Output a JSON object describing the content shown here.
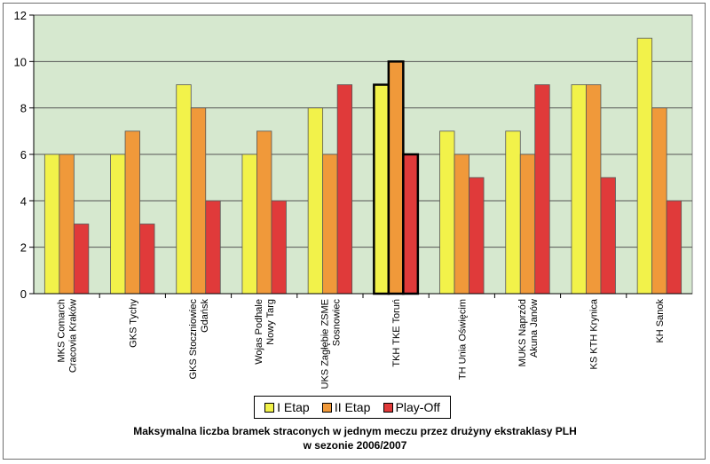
{
  "chart_data": {
    "type": "bar",
    "title_line1": "Maksymalna liczba bramek straconych w jednym meczu przez drużyny ekstraklasy PLH",
    "title_line2": "w sezonie 2006/2007",
    "xlabel": "",
    "ylabel": "",
    "ylim": [
      0,
      12
    ],
    "yticks": [
      0,
      2,
      4,
      6,
      8,
      10,
      12
    ],
    "grid": true,
    "legend_position": "bottom",
    "categories": [
      [
        "MKS Comarch",
        "Cracovia Kraków"
      ],
      [
        "GKS Tychy"
      ],
      [
        "GKS Stoczniowiec",
        "Gdańsk"
      ],
      [
        "Wojas Podhale",
        "Nowy Targ"
      ],
      [
        "UKS Zagłębie ZSME",
        "Sosnowiec"
      ],
      [
        "TKH TKE Toruń"
      ],
      [
        "TH Unia Oświęcim"
      ],
      [
        "MUKS Naprzód",
        "Akuna Janów"
      ],
      [
        "KS KTH Krynica"
      ],
      [
        "KH Sanok"
      ]
    ],
    "highlighted_category": "TKH TKE Toruń",
    "series": [
      {
        "name": "I Etap",
        "color": "#f2f24a",
        "values": [
          6,
          6,
          9,
          6,
          8,
          9,
          7,
          7,
          9,
          11
        ]
      },
      {
        "name": "II Etap",
        "color": "#f0993a",
        "values": [
          6,
          7,
          8,
          7,
          6,
          10,
          6,
          6,
          9,
          8
        ]
      },
      {
        "name": "Play-Off",
        "color": "#e03a3a",
        "values": [
          3,
          3,
          4,
          4,
          9,
          6,
          5,
          9,
          5,
          4
        ]
      }
    ],
    "plot_background": "#d6e8cf",
    "bar_outline": "#555555"
  }
}
